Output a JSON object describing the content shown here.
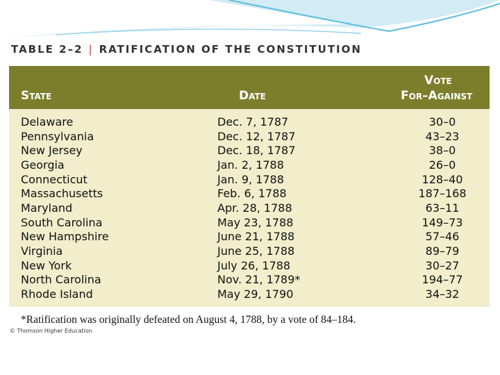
{
  "header": {
    "table_number": "TABLE 2–2",
    "title": "RATIFICATION OF THE CONSTITUTION"
  },
  "table": {
    "columns": {
      "state": "State",
      "date": "Date",
      "vote": [
        "Vote",
        "For–Against"
      ]
    },
    "rows": [
      [
        "Delaware",
        "Dec. 7, 1787",
        "30–0"
      ],
      [
        "Pennsylvania",
        "Dec. 12, 1787",
        "43–23"
      ],
      [
        "New Jersey",
        "Dec. 18, 1787",
        "38–0"
      ],
      [
        "Georgia",
        "Jan. 2, 1788",
        "26–0"
      ],
      [
        "Connecticut",
        "Jan. 9, 1788",
        "128–40"
      ],
      [
        "Massachusetts",
        "Feb. 6, 1788",
        "187–168"
      ],
      [
        "Maryland",
        "Apr. 28, 1788",
        "63–11"
      ],
      [
        "South Carolina",
        "May 23, 1788",
        "149–73"
      ],
      [
        "New Hampshire",
        "June 21, 1788",
        "57–46"
      ],
      [
        "Virginia",
        "June 25, 1788",
        "89–79"
      ],
      [
        "New York",
        "July 26, 1788",
        "30–27"
      ],
      [
        "North Carolina",
        "Nov. 21, 1789*",
        "194–77"
      ],
      [
        "Rhode Island",
        "May 29, 1790",
        "34–32"
      ]
    ]
  },
  "footnote": "*Ratification was originally defeated on August 4, 1788, by a vote of 84–184.",
  "credit": "© Thomson Higher Education"
}
